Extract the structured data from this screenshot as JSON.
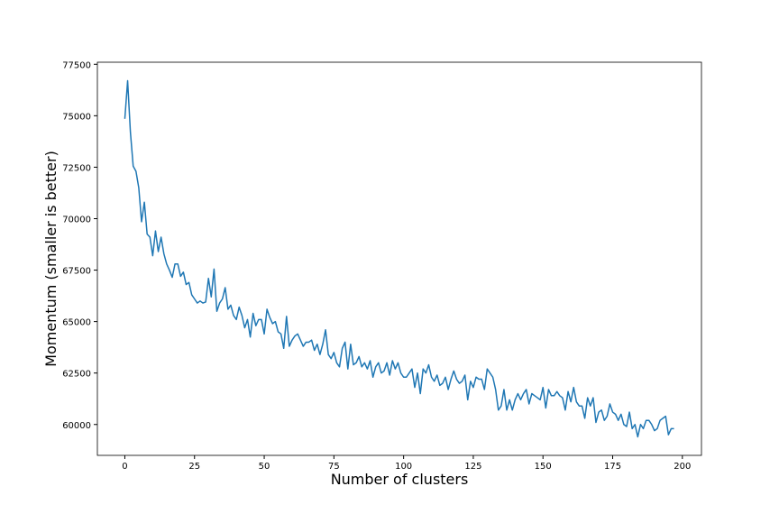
{
  "chart_data": {
    "type": "line",
    "xlabel": "Number of clusters",
    "ylabel": "Momentum (smaller is better)",
    "xlim": [
      -9.85,
      206.85
    ],
    "ylim": [
      58500,
      77600
    ],
    "xticks": [
      0,
      25,
      50,
      75,
      100,
      125,
      150,
      175,
      200
    ],
    "yticks": [
      60000,
      62500,
      65000,
      67500,
      70000,
      72500,
      75000,
      77500
    ],
    "grid": false,
    "x": [
      0,
      1,
      2,
      3,
      4,
      5,
      6,
      7,
      8,
      9,
      10,
      11,
      12,
      13,
      14,
      15,
      16,
      17,
      18,
      19,
      20,
      21,
      22,
      23,
      24,
      25,
      26,
      27,
      28,
      29,
      30,
      31,
      32,
      33,
      34,
      35,
      36,
      37,
      38,
      39,
      40,
      41,
      42,
      43,
      44,
      45,
      46,
      47,
      48,
      49,
      50,
      51,
      52,
      53,
      54,
      55,
      56,
      57,
      58,
      59,
      60,
      61,
      62,
      63,
      64,
      65,
      66,
      67,
      68,
      69,
      70,
      71,
      72,
      73,
      74,
      75,
      76,
      77,
      78,
      79,
      80,
      81,
      82,
      83,
      84,
      85,
      86,
      87,
      88,
      89,
      90,
      91,
      92,
      93,
      94,
      95,
      96,
      97,
      98,
      99,
      100,
      101,
      102,
      103,
      104,
      105,
      106,
      107,
      108,
      109,
      110,
      111,
      112,
      113,
      114,
      115,
      116,
      117,
      118,
      119,
      120,
      121,
      122,
      123,
      124,
      125,
      126,
      127,
      128,
      129,
      130,
      131,
      132,
      133,
      134,
      135,
      136,
      137,
      138,
      139,
      140,
      141,
      142,
      143,
      144,
      145,
      146,
      147,
      148,
      149,
      150,
      151,
      152,
      153,
      154,
      155,
      156,
      157,
      158,
      159,
      160,
      161,
      162,
      163,
      164,
      165,
      166,
      167,
      168,
      169,
      170,
      171,
      172,
      173,
      174,
      175,
      176,
      177,
      178,
      179,
      180,
      181,
      182,
      183,
      184,
      185,
      186,
      187,
      188,
      189,
      190,
      191,
      192,
      193,
      194,
      195,
      196,
      197
    ],
    "series": [
      {
        "color": "#1f77b4",
        "values": [
          74850,
          76700,
          74200,
          72550,
          72300,
          71500,
          69850,
          70800,
          69250,
          69100,
          68200,
          69400,
          68400,
          69100,
          68300,
          67800,
          67500,
          67150,
          67800,
          67800,
          67200,
          67400,
          66800,
          66900,
          66300,
          66100,
          65900,
          66000,
          65900,
          65950,
          67100,
          66200,
          67550,
          65500,
          65900,
          66100,
          66650,
          65600,
          65800,
          65300,
          65100,
          65700,
          65300,
          64700,
          65100,
          64250,
          65400,
          64800,
          65100,
          65100,
          64400,
          65600,
          65200,
          64900,
          65000,
          64500,
          64400,
          63700,
          65250,
          63800,
          64100,
          64300,
          64400,
          64100,
          63800,
          64000,
          64000,
          64100,
          63600,
          63900,
          63400,
          63900,
          64600,
          63400,
          63200,
          63500,
          63000,
          62800,
          63700,
          64000,
          62700,
          63900,
          62900,
          63000,
          63300,
          62800,
          63000,
          62700,
          63100,
          62300,
          62800,
          63000,
          62500,
          62600,
          63000,
          62400,
          63100,
          62700,
          63000,
          62500,
          62300,
          62300,
          62500,
          62700,
          61800,
          62500,
          61500,
          62700,
          62500,
          62900,
          62300,
          62100,
          62400,
          61900,
          62000,
          62300,
          61700,
          62200,
          62600,
          62200,
          62000,
          62100,
          62400,
          61200,
          62100,
          61800,
          62300,
          62200,
          62200,
          61700,
          62700,
          62500,
          62300,
          61700,
          60700,
          60900,
          61700,
          60700,
          61200,
          60700,
          61200,
          61500,
          61200,
          61500,
          61700,
          61000,
          61500,
          61400,
          61300,
          61200,
          61800,
          60800,
          61700,
          61400,
          61400,
          61600,
          61400,
          61300,
          60700,
          61600,
          61100,
          61800,
          61100,
          60900,
          60900,
          60300,
          61300,
          60900,
          61300,
          60100,
          60600,
          60700,
          60200,
          60400,
          61000,
          60600,
          60500,
          60200,
          60500,
          60000,
          59900,
          60600,
          59800,
          60000,
          59400,
          60000,
          59800,
          60200,
          60200,
          60000,
          59700,
          59800,
          60200,
          60300,
          60400,
          59500,
          59800,
          59800
        ]
      }
    ]
  }
}
